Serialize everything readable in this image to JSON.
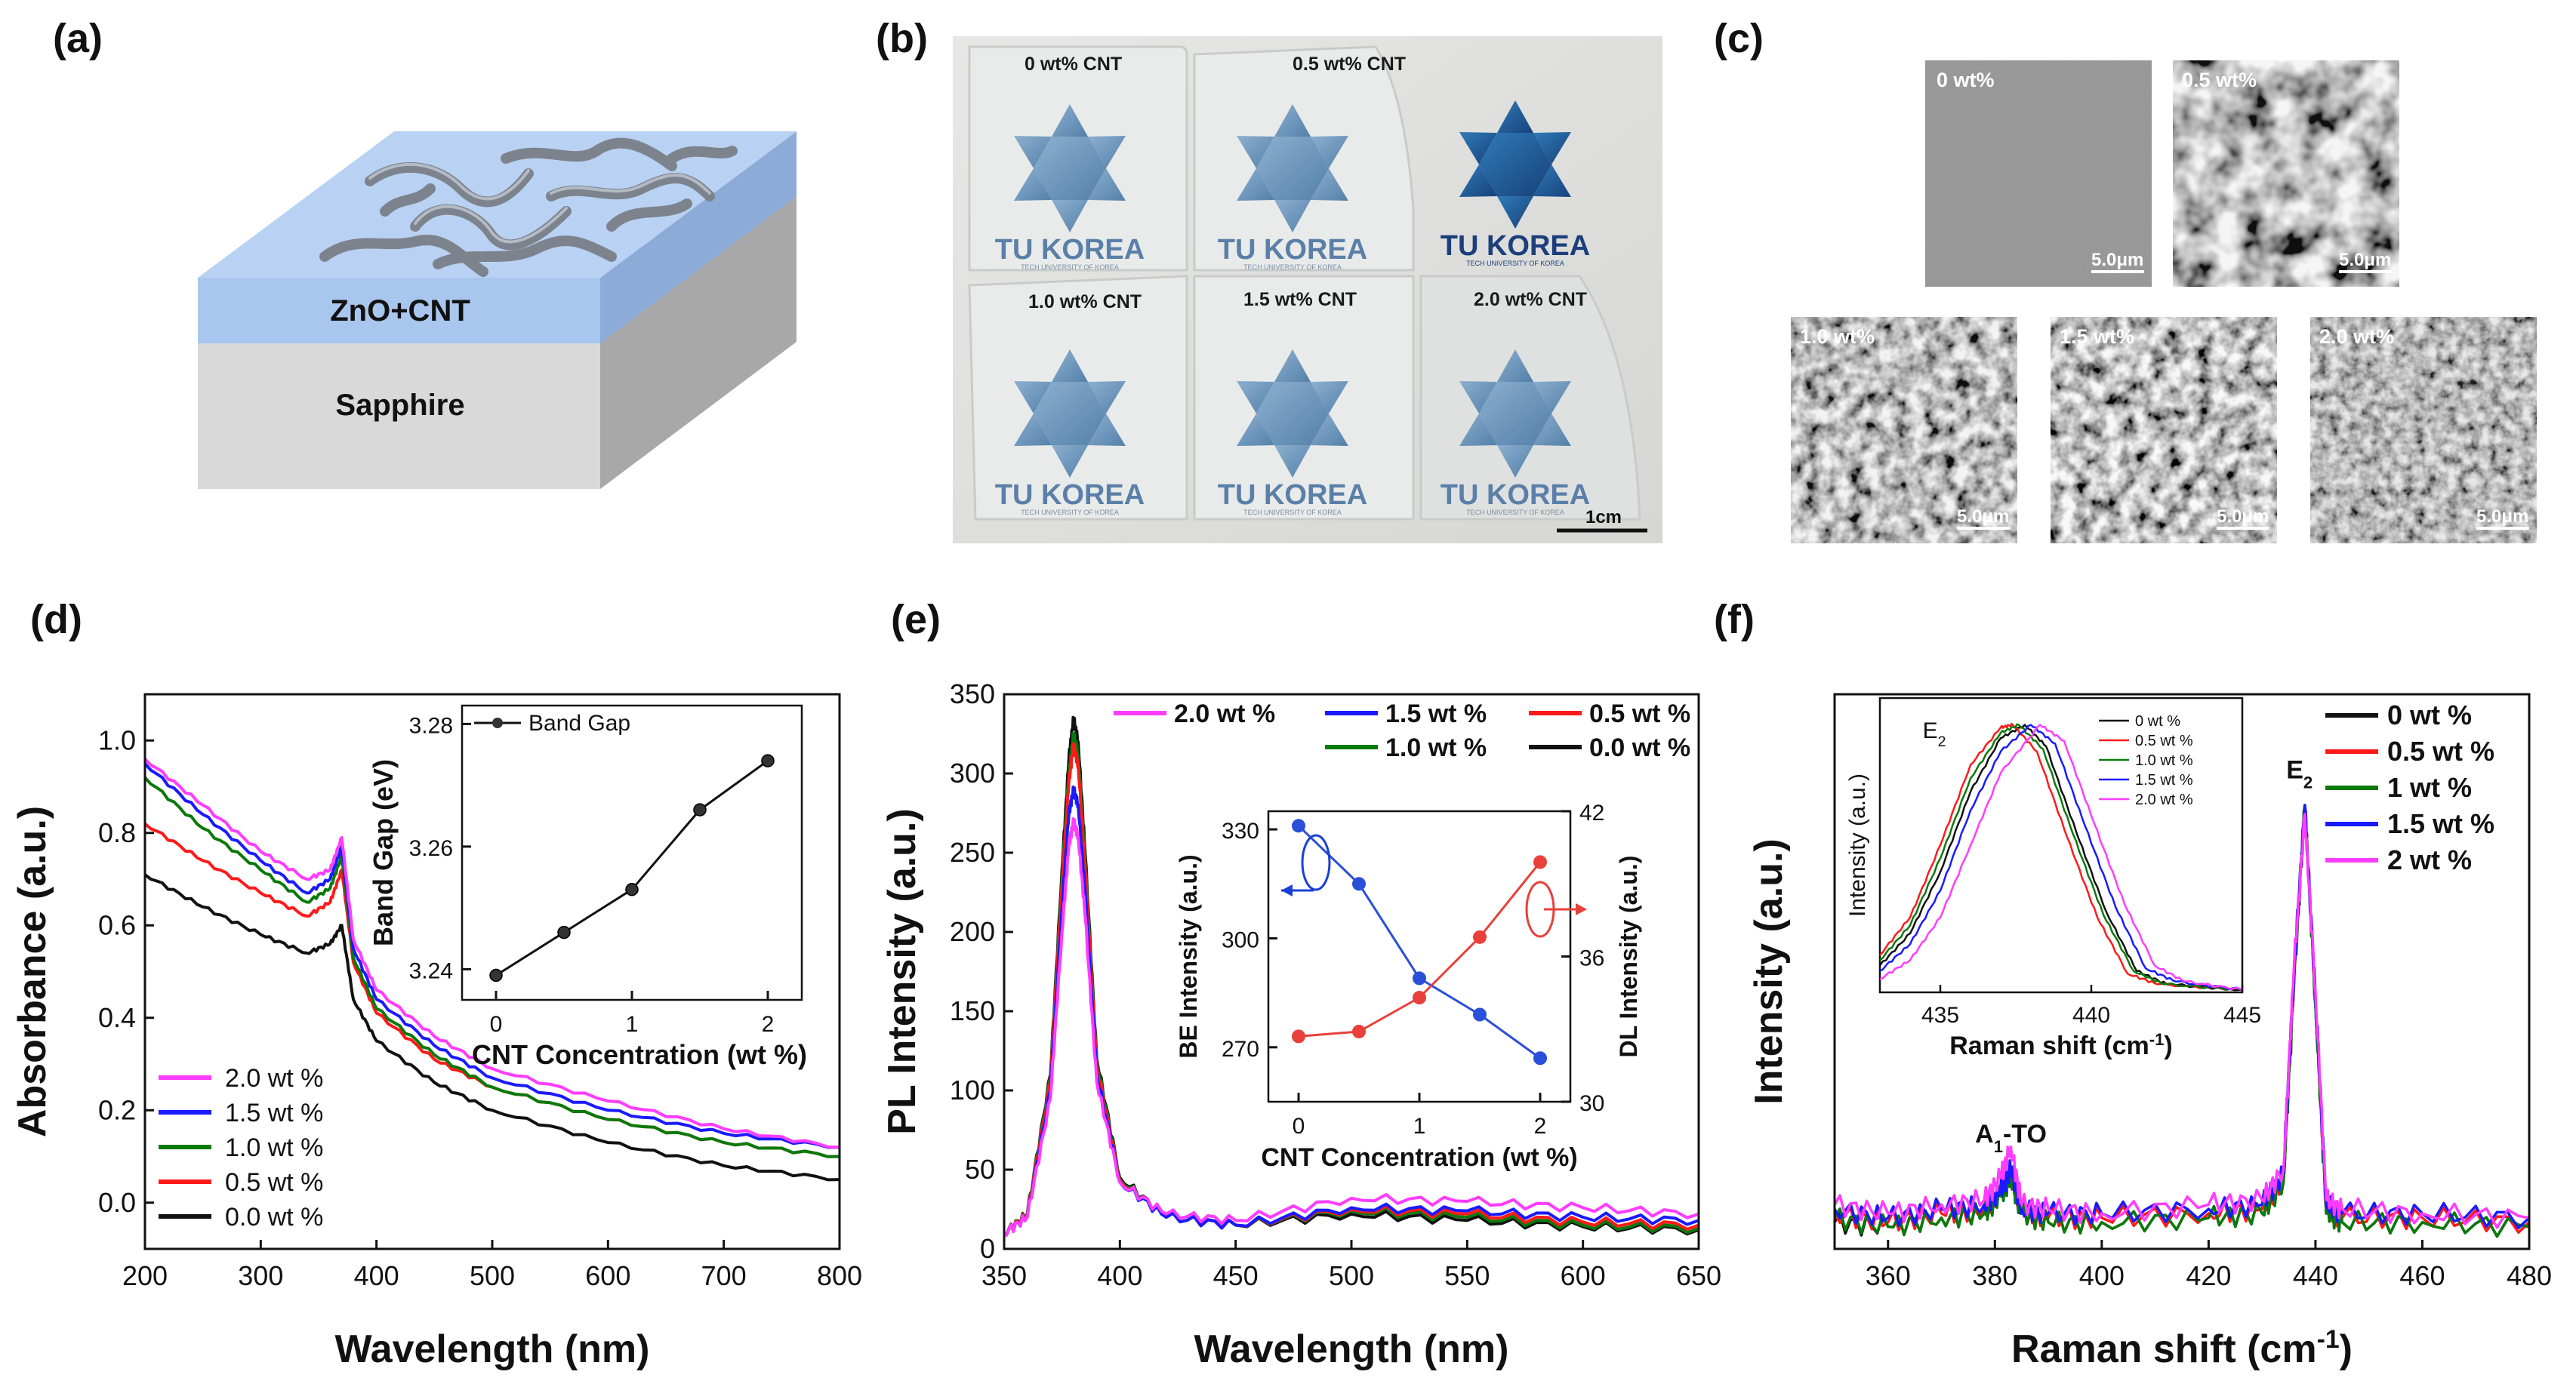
{
  "panels": {
    "a": {
      "label": "(a)",
      "layers": {
        "top": "ZnO+CNT",
        "bottom": "Sapphire"
      },
      "colors": {
        "top": "#a9c6ee",
        "topSide": "#b9d2f3",
        "bottom": "#d9d9d9",
        "bottomSide": "#a7a7a7",
        "cnt": "#8a8f99"
      }
    },
    "b": {
      "label": "(b)",
      "captions": [
        "0 wt% CNT",
        "0.5 wt% CNT",
        "1.0 wt% CNT",
        "1.5 wt% CNT",
        "2.0 wt% CNT"
      ],
      "logo_text": "TU KOREA",
      "logo_sub": "TECH UNIVERSITY OF KOREA",
      "scale_label": "1cm"
    },
    "c": {
      "label": "(c)",
      "images": [
        {
          "label": "0 wt%",
          "scale": "5.0μm"
        },
        {
          "label": "0.5 wt%",
          "scale": "5.0μm"
        },
        {
          "label": "1.0 wt%",
          "scale": "5.0μm"
        },
        {
          "label": "1.5 wt%",
          "scale": "5.0μm"
        },
        {
          "label": "2.0 wt%",
          "scale": "5.0μm"
        }
      ]
    },
    "d": {
      "label": "(d)"
    },
    "e": {
      "label": "(e)"
    },
    "f": {
      "label": "(f)"
    }
  },
  "chart_data": [
    {
      "id": "d",
      "type": "line",
      "xlabel": "Wavelength (nm)",
      "ylabel": "Absorbance (a.u.)",
      "xlim": [
        200,
        800
      ],
      "ylim": [
        -0.1,
        1.1
      ],
      "xticks": [
        200,
        300,
        400,
        500,
        600,
        700,
        800
      ],
      "yticks": [
        0.0,
        0.2,
        0.4,
        0.6,
        0.8,
        1.0
      ],
      "ytick_labels": [
        "0.0",
        "0.2",
        "0.4",
        "0.6",
        "0.8",
        "1.0"
      ],
      "legend": "bottom-left",
      "series": [
        {
          "name": "2.0 wt %",
          "color": "#ff3cff",
          "x": [
            200,
            250,
            300,
            340,
            360,
            370,
            380,
            400,
            450,
            500,
            600,
            700,
            800
          ],
          "y": [
            0.96,
            0.86,
            0.76,
            0.7,
            0.72,
            0.79,
            0.57,
            0.46,
            0.36,
            0.29,
            0.22,
            0.16,
            0.12
          ]
        },
        {
          "name": "1.5 wt %",
          "color": "#1a1aff",
          "x": [
            200,
            250,
            300,
            340,
            360,
            370,
            380,
            400,
            450,
            500,
            600,
            700,
            800
          ],
          "y": [
            0.95,
            0.84,
            0.74,
            0.67,
            0.7,
            0.77,
            0.55,
            0.44,
            0.34,
            0.27,
            0.2,
            0.15,
            0.12
          ]
        },
        {
          "name": "1.0 wt %",
          "color": "#0a7a0a",
          "x": [
            200,
            250,
            300,
            340,
            360,
            370,
            380,
            400,
            450,
            500,
            600,
            700,
            800
          ],
          "y": [
            0.92,
            0.81,
            0.72,
            0.65,
            0.68,
            0.75,
            0.53,
            0.42,
            0.32,
            0.25,
            0.18,
            0.13,
            0.1
          ]
        },
        {
          "name": "0.5 wt %",
          "color": "#ff1a1a",
          "x": [
            200,
            250,
            300,
            340,
            360,
            370,
            380,
            400,
            450,
            500,
            600,
            700,
            800
          ],
          "y": [
            0.82,
            0.74,
            0.67,
            0.62,
            0.65,
            0.72,
            0.52,
            0.41,
            0.31,
            0.25,
            0.18,
            0.13,
            0.1
          ]
        },
        {
          "name": "0.0 wt %",
          "color": "#111111",
          "x": [
            200,
            250,
            300,
            340,
            360,
            370,
            380,
            400,
            450,
            500,
            600,
            700,
            800
          ],
          "y": [
            0.71,
            0.64,
            0.58,
            0.54,
            0.56,
            0.6,
            0.44,
            0.35,
            0.26,
            0.2,
            0.13,
            0.08,
            0.05
          ]
        }
      ],
      "inset": {
        "type": "line",
        "xlabel": "CNT Concentration (wt %)",
        "ylabel": "Band Gap (eV)",
        "xlim": [
          -0.25,
          2.25
        ],
        "ylim": [
          3.235,
          3.283
        ],
        "xticks": [
          0,
          1,
          2
        ],
        "yticks": [
          3.24,
          3.26,
          3.28
        ],
        "ytick_labels": [
          "3.24",
          "3.26",
          "3.28"
        ],
        "legend": "top-left",
        "series": [
          {
            "name": "Band Gap",
            "color": "#111111",
            "x": [
              0.0,
              0.5,
              1.0,
              1.5,
              2.0
            ],
            "y": [
              3.239,
              3.246,
              3.253,
              3.266,
              3.274
            ]
          }
        ]
      }
    },
    {
      "id": "e",
      "type": "line",
      "xlabel": "Wavelength (nm)",
      "ylabel": "PL Intensity (a.u.)",
      "xlim": [
        350,
        650
      ],
      "ylim": [
        0,
        350
      ],
      "xticks": [
        350,
        400,
        450,
        500,
        550,
        600,
        650
      ],
      "yticks": [
        0,
        50,
        100,
        150,
        200,
        250,
        300,
        350
      ],
      "legend": "top-right",
      "series": [
        {
          "name": "0.0 wt %",
          "color": "#111111",
          "x": [
            350,
            360,
            370,
            375,
            378,
            380,
            382,
            385,
            390,
            400,
            420,
            450,
            500,
            550,
            600,
            650
          ],
          "y": [
            10,
            22,
            110,
            240,
            310,
            335,
            320,
            250,
            120,
            45,
            20,
            15,
            22,
            18,
            14,
            12
          ]
        },
        {
          "name": "1.0 wt %",
          "color": "#0a7a0a",
          "x": [
            350,
            360,
            370,
            375,
            378,
            380,
            382,
            385,
            390,
            400,
            420,
            450,
            500,
            550,
            600,
            650
          ],
          "y": [
            10,
            22,
            108,
            235,
            300,
            325,
            312,
            245,
            118,
            44,
            20,
            15,
            24,
            20,
            15,
            13
          ]
        },
        {
          "name": "0.5 wt %",
          "color": "#ff1a1a",
          "x": [
            350,
            360,
            370,
            375,
            378,
            380,
            382,
            385,
            390,
            400,
            420,
            450,
            500,
            550,
            600,
            650
          ],
          "y": [
            10,
            21,
            105,
            230,
            295,
            318,
            305,
            240,
            115,
            43,
            20,
            15,
            25,
            22,
            17,
            15
          ]
        },
        {
          "name": "1.5 wt %",
          "color": "#1a1aff",
          "x": [
            350,
            360,
            370,
            375,
            378,
            380,
            382,
            385,
            390,
            400,
            420,
            450,
            500,
            550,
            600,
            650
          ],
          "y": [
            10,
            20,
            100,
            215,
            275,
            290,
            280,
            225,
            110,
            42,
            20,
            15,
            26,
            24,
            20,
            18
          ]
        },
        {
          "name": "2.0 wt %",
          "color": "#ff3cff",
          "x": [
            350,
            360,
            370,
            375,
            378,
            380,
            382,
            385,
            390,
            400,
            420,
            450,
            500,
            550,
            600,
            650
          ],
          "y": [
            10,
            20,
            95,
            200,
            255,
            270,
            260,
            210,
            105,
            42,
            22,
            18,
            32,
            30,
            26,
            22
          ]
        }
      ],
      "legend_order": [
        "2.0 wt %",
        "1.5 wt %",
        "0.5 wt %",
        "1.0 wt %",
        "0.0 wt %"
      ],
      "inset": {
        "type": "line",
        "xlabel": "CNT Concentration (wt %)",
        "ylabel": "BE Intensity (a.u.)",
        "y2label": "DL Intensity (a.u.)",
        "xlim": [
          -0.25,
          2.25
        ],
        "ylim": [
          255,
          335
        ],
        "y2lim": [
          30,
          42
        ],
        "xticks": [
          0,
          1,
          2
        ],
        "yticks": [
          270,
          300,
          330
        ],
        "y2ticks": [
          30,
          36,
          42
        ],
        "series": [
          {
            "name": "BE",
            "axis": "left",
            "color": "#2a4fd8",
            "x": [
              0.0,
              0.5,
              1.0,
              1.5,
              2.0
            ],
            "y": [
              331,
              315,
              289,
              279,
              267
            ]
          },
          {
            "name": "DL",
            "axis": "right",
            "color": "#e8403a",
            "x": [
              0.0,
              0.5,
              1.0,
              1.5,
              2.0
            ],
            "y": [
              32.7,
              32.9,
              34.3,
              36.8,
              39.9
            ]
          }
        ]
      }
    },
    {
      "id": "f",
      "type": "line",
      "xlabel": "Raman shift (cm",
      "xlabel_sup": "-1",
      "xlabel_end": ")",
      "ylabel": "Intensity (a.u.)",
      "xlim": [
        350,
        480
      ],
      "ylim": [
        0,
        1.25
      ],
      "xticks": [
        360,
        380,
        400,
        420,
        440,
        460,
        480
      ],
      "legend": "top-right",
      "annotations": [
        {
          "text": "A",
          "sub": "1",
          "text_end": "-TO",
          "x": 383,
          "y": 0.24
        },
        {
          "text": "E",
          "sub": "2",
          "text_end": "",
          "x": 437,
          "y": 1.06
        }
      ],
      "series": [
        {
          "name": "0 wt %",
          "color": "#111111",
          "x": [
            350,
            360,
            370,
            378,
            381,
            383,
            385,
            390,
            400,
            420,
            430,
            434,
            436,
            438,
            440,
            442,
            445,
            460,
            480
          ],
          "y": [
            0.06,
            0.05,
            0.07,
            0.08,
            0.12,
            0.16,
            0.08,
            0.06,
            0.06,
            0.07,
            0.08,
            0.15,
            0.6,
            1.0,
            0.55,
            0.08,
            0.06,
            0.06,
            0.05
          ]
        },
        {
          "name": "0.5 wt %",
          "color": "#ff1a1a",
          "x": [
            350,
            360,
            370,
            378,
            381,
            383,
            385,
            390,
            400,
            420,
            430,
            434,
            436,
            438,
            440,
            442,
            445,
            460,
            480
          ],
          "y": [
            0.08,
            0.06,
            0.08,
            0.09,
            0.13,
            0.17,
            0.09,
            0.07,
            0.07,
            0.08,
            0.09,
            0.16,
            0.62,
            1.0,
            0.56,
            0.09,
            0.07,
            0.07,
            0.06
          ]
        },
        {
          "name": "1 wt %",
          "color": "#0a7a0a",
          "x": [
            350,
            360,
            370,
            378,
            381,
            383,
            385,
            390,
            400,
            420,
            430,
            434,
            436,
            438,
            440,
            442,
            445,
            460,
            480
          ],
          "y": [
            0.07,
            0.05,
            0.07,
            0.08,
            0.12,
            0.16,
            0.08,
            0.06,
            0.06,
            0.07,
            0.08,
            0.15,
            0.61,
            1.0,
            0.55,
            0.08,
            0.06,
            0.06,
            0.05
          ]
        },
        {
          "name": "1.5 wt %",
          "color": "#1a1aff",
          "x": [
            350,
            360,
            370,
            378,
            381,
            383,
            385,
            390,
            400,
            420,
            430,
            434,
            436,
            438,
            440,
            442,
            445,
            460,
            480
          ],
          "y": [
            0.09,
            0.07,
            0.09,
            0.1,
            0.13,
            0.18,
            0.09,
            0.08,
            0.08,
            0.09,
            0.1,
            0.17,
            0.63,
            1.0,
            0.57,
            0.1,
            0.08,
            0.08,
            0.07
          ]
        },
        {
          "name": "2 wt %",
          "color": "#ff3cff",
          "x": [
            350,
            360,
            370,
            378,
            381,
            383,
            385,
            390,
            400,
            420,
            430,
            434,
            436,
            438,
            440,
            442,
            445,
            460,
            480
          ],
          "y": [
            0.1,
            0.08,
            0.1,
            0.11,
            0.16,
            0.23,
            0.1,
            0.09,
            0.08,
            0.1,
            0.11,
            0.18,
            0.64,
            0.98,
            0.58,
            0.11,
            0.09,
            0.08,
            0.07
          ]
        }
      ],
      "inset": {
        "type": "line",
        "xlabel": "Raman shift (cm",
        "xlabel_sup": "-1",
        "xlabel_end": ")",
        "ylabel": "Intensity (a.u.)",
        "xlim": [
          433,
          445
        ],
        "ylim": [
          0,
          1.1
        ],
        "xticks": [
          435,
          440,
          445
        ],
        "annotation": {
          "text": "E",
          "sub": "2",
          "x": 434.8,
          "y": 0.95
        },
        "series": [
          {
            "name": "0 wt %",
            "color": "#111111",
            "x": [
              433,
              434,
              435,
              436,
              437,
              437.8,
              438.5,
              439.5,
              440.5,
              441.5,
              442.5,
              445
            ],
            "y": [
              0.1,
              0.22,
              0.45,
              0.75,
              0.95,
              1.0,
              0.92,
              0.6,
              0.3,
              0.08,
              0.03,
              0.01
            ]
          },
          {
            "name": "0.5 wt %",
            "color": "#ff1a1a",
            "x": [
              433,
              434,
              435,
              436,
              437,
              437.4,
              438.2,
              439.2,
              440.2,
              441.2,
              442.2,
              445
            ],
            "y": [
              0.14,
              0.28,
              0.55,
              0.85,
              0.99,
              1.0,
              0.9,
              0.58,
              0.28,
              0.07,
              0.03,
              0.01
            ]
          },
          {
            "name": "1.0 wt %",
            "color": "#0a7a0a",
            "x": [
              433,
              434,
              435,
              436,
              437,
              437.6,
              438.4,
              439.4,
              440.4,
              441.4,
              442.4,
              445
            ],
            "y": [
              0.12,
              0.25,
              0.5,
              0.8,
              0.97,
              1.0,
              0.91,
              0.59,
              0.29,
              0.08,
              0.03,
              0.01
            ]
          },
          {
            "name": "1.5 wt %",
            "color": "#1a1aff",
            "x": [
              433,
              434,
              435,
              436,
              437,
              438.0,
              438.8,
              439.8,
              440.8,
              441.8,
              442.8,
              445
            ],
            "y": [
              0.08,
              0.18,
              0.38,
              0.68,
              0.9,
              1.0,
              0.93,
              0.62,
              0.32,
              0.09,
              0.04,
              0.01
            ]
          },
          {
            "name": "2.0 wt %",
            "color": "#ff3cff",
            "x": [
              433,
              434,
              435,
              436,
              437,
              438.3,
              439.1,
              440.1,
              441.1,
              442.1,
              443.1,
              445
            ],
            "y": [
              0.05,
              0.12,
              0.28,
              0.55,
              0.82,
              1.0,
              0.94,
              0.63,
              0.33,
              0.1,
              0.04,
              0.01
            ]
          }
        ]
      }
    }
  ]
}
